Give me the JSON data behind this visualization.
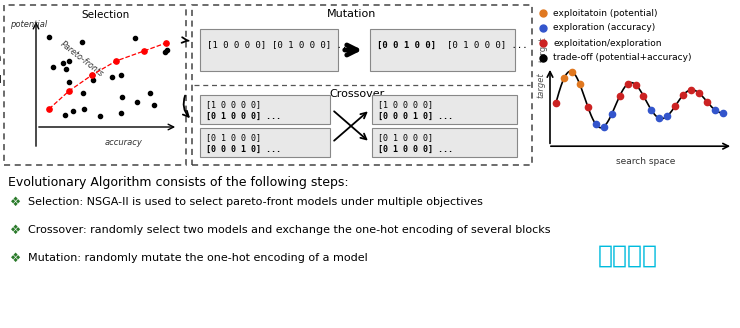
{
  "bg_color": "#ffffff",
  "title_text": "Evolutionary Algorithm consists of the following steps:",
  "bullets": [
    "Selection: NSGA-II is used to select pareto-front models under multiple objectives",
    "Crossover: randomly select two models and exchange the one-hot encoding of several blocks",
    "Mutation: randomly mutate the one-hot encoding of a model"
  ],
  "watermark": "谷普下载",
  "legend_items": [
    {
      "label": "exploitatoin (potential)",
      "color": "#E07820"
    },
    {
      "label": "exploration (accuracy)",
      "color": "#3355CC"
    },
    {
      "label": "exploitation/exploration",
      "color": "#CC2222"
    },
    {
      "label": "trade-off (potential+accuracy)",
      "color": "#000000"
    }
  ],
  "mutation_in": "[1 0 0 0 0]  [0 1 0 0 0] ...",
  "mutation_out": "[0 0 1 0 0]  [0 1 0 0 0] ...",
  "crossover_tl": "[1 0 0 0 0]  [01000] ...",
  "crossover_bl": "[0 1 0 0 0]  [00010] ...",
  "crossover_tr": "[1 0 0 0 0]  [00010] ...",
  "crossover_br": "[0 1 0 0 0]  [01000] ..."
}
